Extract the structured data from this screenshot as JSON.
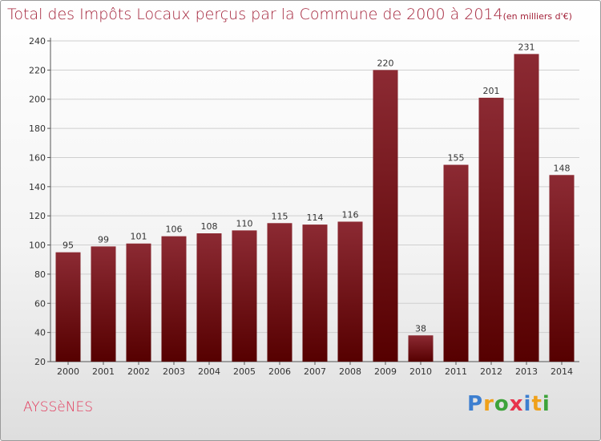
{
  "header": {
    "title": "Total des Impôts Locaux perçus par la Commune de 2000 à 2014",
    "unit": "(en milliers d'€)"
  },
  "footer": {
    "commune": "AYSSèNES",
    "logo_letters": [
      {
        "char": "P",
        "color": "#3d7fd0"
      },
      {
        "char": "r",
        "color": "#f0a11a"
      },
      {
        "char": "o",
        "color": "#3da33a"
      },
      {
        "char": "x",
        "color": "#e8344c"
      },
      {
        "char": "i",
        "color": "#3d7fd0"
      },
      {
        "char": "t",
        "color": "#f0a11a"
      },
      {
        "char": "i",
        "color": "#3da33a"
      }
    ]
  },
  "colors": {
    "bar_top": "#8c2a33",
    "bar_bottom": "#560000",
    "title": "#a3233a",
    "grid": "#cfcfcf"
  },
  "chart_data": {
    "type": "bar",
    "categories": [
      "2000",
      "2001",
      "2002",
      "2003",
      "2004",
      "2005",
      "2006",
      "2007",
      "2008",
      "2009",
      "2010",
      "2011",
      "2012",
      "2013",
      "2014"
    ],
    "values": [
      95,
      99,
      101,
      106,
      108,
      110,
      115,
      114,
      116,
      220,
      38,
      155,
      201,
      231,
      148
    ],
    "ylim": [
      20,
      240
    ],
    "yticks": [
      20,
      40,
      60,
      80,
      100,
      120,
      140,
      160,
      180,
      200,
      220,
      240
    ],
    "grid": true,
    "data_labels": true
  }
}
